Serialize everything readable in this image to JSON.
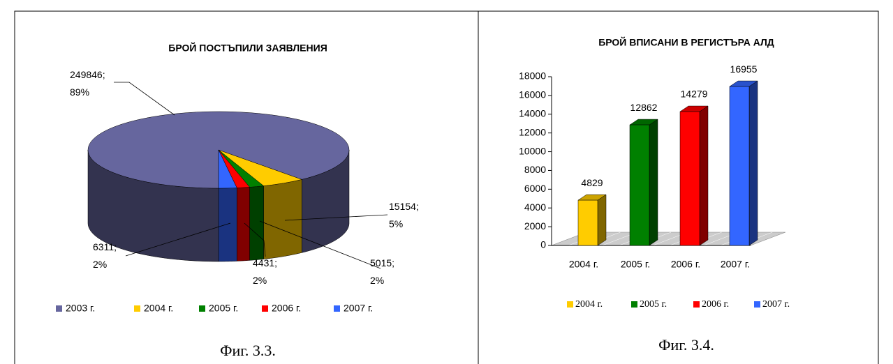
{
  "chart_data": [
    {
      "type": "pie",
      "title": "БРОЙ ПОСТЪПИЛИ ЗАЯВЛЕНИЯ",
      "categories": [
        "2003 г.",
        "2004 г.",
        "2005 г.",
        "2006 г.",
        "2007 г."
      ],
      "values": [
        249846,
        15154,
        5015,
        4431,
        6311
      ],
      "value_labels": [
        "249846; 89%",
        "15154; 5%",
        "5015; 2%",
        "4431; 2%",
        "6311; 2%"
      ],
      "colors": [
        "#66669e",
        "#ffcc00",
        "#008000",
        "#ff0000",
        "#3366ff"
      ],
      "caption": "Фиг. 3.3."
    },
    {
      "type": "bar",
      "title": "БРОЙ ВПИСАНИ В РЕГИСТЪРА АЛД",
      "categories": [
        "2004 г.",
        "2005 г.",
        "2006 г.",
        "2007 г."
      ],
      "values": [
        4829,
        12862,
        14279,
        16955
      ],
      "colors": [
        "#ffcc00",
        "#008000",
        "#ff0000",
        "#3366ff"
      ],
      "ylim": [
        0,
        18000
      ],
      "yticks": [
        0,
        2000,
        4000,
        6000,
        8000,
        10000,
        12000,
        14000,
        16000,
        18000
      ],
      "caption": "Фиг. 3.4."
    }
  ]
}
